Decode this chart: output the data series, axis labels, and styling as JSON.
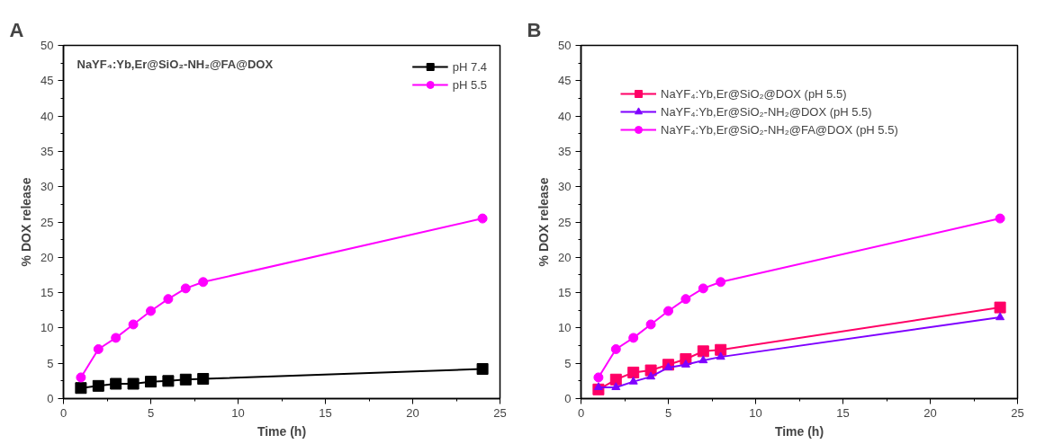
{
  "chart_data": [
    {
      "type": "line",
      "title": "A",
      "xlabel": "Time (h)",
      "ylabel": "% DOX release",
      "annotations": [
        "NaYF₄:Yb,Er@SiO₂-NH₂@FA@DOX"
      ],
      "x": [
        1,
        2,
        3,
        4,
        5,
        6,
        7,
        8,
        24
      ],
      "xlim": [
        0,
        25
      ],
      "xticks": [
        0,
        5,
        10,
        15,
        20,
        25
      ],
      "ylim": [
        0,
        50
      ],
      "yticks": [
        0,
        5,
        10,
        15,
        20,
        25,
        30,
        35,
        40,
        45,
        50
      ],
      "grid": false,
      "legend": "top right",
      "series": [
        {
          "name": "pH 7.4",
          "color": "#000000",
          "marker": "square",
          "values": [
            1.5,
            1.8,
            2.1,
            2.1,
            2.4,
            2.5,
            2.7,
            2.8,
            4.2
          ]
        },
        {
          "name": "pH 5.5",
          "color": "#ff00ff",
          "marker": "circle",
          "values": [
            3.0,
            7.0,
            8.6,
            10.5,
            12.4,
            14.1,
            15.6,
            16.5,
            25.5
          ]
        }
      ]
    },
    {
      "type": "line",
      "title": "B",
      "xlabel": "Time (h)",
      "ylabel": "% DOX release",
      "x": [
        1,
        2,
        3,
        4,
        5,
        6,
        7,
        8,
        24
      ],
      "xlim": [
        0,
        25
      ],
      "xticks": [
        0,
        5,
        10,
        15,
        20,
        25
      ],
      "ylim": [
        0,
        50
      ],
      "yticks": [
        0,
        5,
        10,
        15,
        20,
        25,
        30,
        35,
        40,
        45,
        50
      ],
      "grid": false,
      "legend": "top left",
      "series": [
        {
          "name": "NaYF₄:Yb,Er@SiO₂@DOX (pH 5.5)",
          "color": "#ff0066",
          "marker": "square",
          "values": [
            1.3,
            2.7,
            3.7,
            4.0,
            4.8,
            5.6,
            6.7,
            6.9,
            12.9
          ]
        },
        {
          "name": "NaYF₄:Yb,Er@SiO₂-NH₂@DOX (pH 5.5)",
          "color": "#7f00ff",
          "marker": "triangle",
          "values": [
            1.6,
            1.6,
            2.4,
            3.1,
            4.4,
            4.8,
            5.4,
            5.9,
            11.5
          ]
        },
        {
          "name": "NaYF₄:Yb,Er@SiO₂-NH₂@FA@DOX (pH 5.5)",
          "color": "#ff00ff",
          "marker": "circle",
          "values": [
            3.0,
            7.0,
            8.6,
            10.5,
            12.4,
            14.1,
            15.6,
            16.5,
            25.5
          ]
        }
      ]
    }
  ]
}
